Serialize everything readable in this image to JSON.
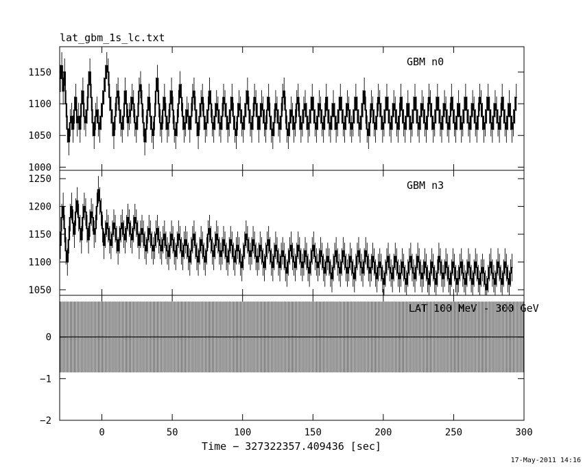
{
  "title": "lat_gbm_1s_lc.txt",
  "timestamp": "17-May-2011 14:16",
  "chart_data": [
    {
      "type": "line",
      "panel_label": "GBM n0",
      "xlim": [
        -30,
        300
      ],
      "ylim": [
        995,
        1190
      ],
      "yticks": [
        "1000",
        "1050",
        "1100",
        "1150"
      ],
      "series": [
        {
          "x_start": -30,
          "x_step": 1,
          "values": [
            1140,
            1160,
            1120,
            1150,
            1100,
            1060,
            1040,
            1070,
            1080,
            1060,
            1090,
            1110,
            1070,
            1080,
            1060,
            1100,
            1120,
            1080,
            1070,
            1090,
            1130,
            1150,
            1110,
            1070,
            1050,
            1080,
            1090,
            1070,
            1060,
            1080,
            1100,
            1120,
            1140,
            1160,
            1150,
            1110,
            1090,
            1070,
            1050,
            1080,
            1110,
            1120,
            1090,
            1070,
            1060,
            1080,
            1120,
            1100,
            1070,
            1080,
            1090,
            1110,
            1100,
            1070,
            1060,
            1080,
            1120,
            1130,
            1100,
            1070,
            1040,
            1060,
            1090,
            1110,
            1080,
            1060,
            1050,
            1080,
            1120,
            1140,
            1100,
            1070,
            1060,
            1090,
            1110,
            1080,
            1060,
            1070,
            1100,
            1120,
            1090,
            1060,
            1050,
            1070,
            1100,
            1130,
            1110,
            1080,
            1060,
            1070,
            1090,
            1080,
            1060,
            1080,
            1110,
            1120,
            1090,
            1070,
            1050,
            1080,
            1100,
            1110,
            1080,
            1060,
            1070,
            1090,
            1120,
            1100,
            1070,
            1060,
            1080,
            1100,
            1090,
            1070,
            1060,
            1080,
            1110,
            1100,
            1080,
            1060,
            1070,
            1090,
            1110,
            1080,
            1060,
            1050,
            1080,
            1100,
            1090,
            1070,
            1060,
            1080,
            1100,
            1120,
            1090,
            1070,
            1060,
            1080,
            1110,
            1100,
            1080,
            1060,
            1080,
            1100,
            1090,
            1070,
            1060,
            1090,
            1110,
            1080,
            1060,
            1050,
            1070,
            1100,
            1090,
            1070,
            1060,
            1080,
            1110,
            1120,
            1090,
            1060,
            1050,
            1070,
            1090,
            1080,
            1060,
            1070,
            1100,
            1110,
            1080,
            1060,
            1070,
            1090,
            1100,
            1080,
            1060,
            1070,
            1090,
            1110,
            1090,
            1070,
            1060,
            1080,
            1100,
            1090,
            1070,
            1060,
            1080,
            1110,
            1090,
            1070,
            1060,
            1080,
            1100,
            1080,
            1060,
            1070,
            1090,
            1110,
            1090,
            1070,
            1060,
            1080,
            1100,
            1090,
            1070,
            1060,
            1070,
            1090,
            1110,
            1090,
            1070,
            1060,
            1080,
            1100,
            1120,
            1090,
            1060,
            1050,
            1070,
            1100,
            1090,
            1070,
            1060,
            1080,
            1110,
            1100,
            1080,
            1060,
            1070,
            1090,
            1110,
            1090,
            1070,
            1060,
            1080,
            1100,
            1090,
            1070,
            1060,
            1080,
            1110,
            1090,
            1070,
            1060,
            1080,
            1100,
            1080,
            1060,
            1070,
            1090,
            1110,
            1090,
            1070,
            1060,
            1080,
            1100,
            1090,
            1070,
            1060,
            1080,
            1110,
            1100,
            1080,
            1060,
            1070,
            1090,
            1110,
            1090,
            1070,
            1060,
            1080,
            1100,
            1090,
            1070,
            1060,
            1080,
            1110,
            1090,
            1070,
            1060,
            1080,
            1100,
            1080,
            1060,
            1070,
            1090,
            1110,
            1090,
            1070,
            1060,
            1080,
            1100,
            1090,
            1070,
            1060,
            1080,
            1110,
            1100,
            1080,
            1060,
            1070,
            1090,
            1110,
            1090,
            1070,
            1060,
            1080,
            1100,
            1090,
            1070,
            1060,
            1080,
            1110,
            1090,
            1070,
            1060,
            1080,
            1100,
            1080,
            1060,
            1070,
            1090,
            1110
          ]
        }
      ]
    },
    {
      "type": "line",
      "panel_label": "GBM n3",
      "xlim": [
        -30,
        300
      ],
      "ylim": [
        1040,
        1265
      ],
      "yticks": [
        "1050",
        "1100",
        "1150",
        "1200",
        "1250"
      ],
      "series": [
        {
          "x_start": -30,
          "x_step": 1,
          "values": [
            1130,
            1180,
            1200,
            1160,
            1120,
            1100,
            1140,
            1180,
            1200,
            1170,
            1150,
            1190,
            1210,
            1180,
            1160,
            1140,
            1180,
            1200,
            1190,
            1160,
            1140,
            1170,
            1190,
            1180,
            1150,
            1160,
            1200,
            1230,
            1210,
            1190,
            1160,
            1130,
            1150,
            1170,
            1160,
            1140,
            1130,
            1150,
            1170,
            1160,
            1140,
            1120,
            1140,
            1160,
            1170,
            1150,
            1140,
            1160,
            1180,
            1170,
            1150,
            1140,
            1160,
            1180,
            1170,
            1150,
            1130,
            1150,
            1160,
            1150,
            1130,
            1120,
            1140,
            1160,
            1150,
            1130,
            1120,
            1130,
            1150,
            1160,
            1140,
            1130,
            1120,
            1140,
            1150,
            1130,
            1120,
            1110,
            1130,
            1150,
            1140,
            1120,
            1110,
            1130,
            1150,
            1140,
            1120,
            1110,
            1130,
            1140,
            1130,
            1110,
            1100,
            1120,
            1140,
            1150,
            1130,
            1110,
            1100,
            1120,
            1140,
            1130,
            1110,
            1100,
            1120,
            1150,
            1160,
            1140,
            1120,
            1110,
            1130,
            1150,
            1140,
            1120,
            1110,
            1120,
            1140,
            1130,
            1110,
            1100,
            1120,
            1140,
            1130,
            1110,
            1100,
            1120,
            1130,
            1120,
            1100,
            1090,
            1110,
            1130,
            1150,
            1140,
            1120,
            1110,
            1120,
            1140,
            1130,
            1110,
            1100,
            1110,
            1130,
            1120,
            1100,
            1090,
            1110,
            1130,
            1140,
            1120,
            1100,
            1090,
            1110,
            1130,
            1120,
            1100,
            1090,
            1110,
            1120,
            1110,
            1090,
            1080,
            1100,
            1120,
            1130,
            1110,
            1100,
            1090,
            1110,
            1130,
            1120,
            1100,
            1090,
            1100,
            1120,
            1110,
            1090,
            1080,
            1100,
            1120,
            1130,
            1110,
            1100,
            1090,
            1100,
            1120,
            1110,
            1090,
            1080,
            1100,
            1110,
            1100,
            1080,
            1070,
            1090,
            1110,
            1120,
            1100,
            1090,
            1080,
            1100,
            1120,
            1110,
            1090,
            1080,
            1090,
            1110,
            1100,
            1080,
            1070,
            1090,
            1110,
            1120,
            1100,
            1090,
            1080,
            1100,
            1120,
            1110,
            1090,
            1080,
            1090,
            1110,
            1100,
            1080,
            1070,
            1090,
            1100,
            1090,
            1070,
            1060,
            1080,
            1100,
            1110,
            1090,
            1080,
            1070,
            1090,
            1110,
            1100,
            1080,
            1070,
            1080,
            1100,
            1090,
            1070,
            1060,
            1080,
            1100,
            1110,
            1090,
            1080,
            1070,
            1090,
            1110,
            1100,
            1080,
            1070,
            1080,
            1100,
            1090,
            1070,
            1060,
            1080,
            1100,
            1090,
            1070,
            1060,
            1080,
            1110,
            1100,
            1080,
            1070,
            1080,
            1100,
            1090,
            1070,
            1060,
            1080,
            1100,
            1090,
            1070,
            1060,
            1070,
            1090,
            1100,
            1080,
            1070,
            1060,
            1080,
            1100,
            1090,
            1070,
            1060,
            1080,
            1100,
            1090,
            1070,
            1060,
            1080,
            1090,
            1080,
            1060,
            1050,
            1070,
            1090,
            1100,
            1080,
            1070,
            1060,
            1080,
            1100,
            1090,
            1070,
            1060,
            1080,
            1100,
            1090,
            1070,
            1060,
            1080,
            1090
          ]
        }
      ]
    },
    {
      "type": "bar",
      "panel_label": "LAT 100 MeV - 300 GeV",
      "xlim": [
        -30,
        300
      ],
      "ylim": [
        -2,
        1
      ],
      "yticks": [
        "−2",
        "−1",
        "0"
      ],
      "x_start": -30,
      "x_step": 1,
      "value": 0,
      "error": 0.85
    }
  ],
  "x_axis": {
    "label": "Time − 327322357.409436 [sec]",
    "ticks": [
      "0",
      "50",
      "100",
      "150",
      "200",
      "250",
      "300"
    ],
    "tick_values": [
      0,
      50,
      100,
      150,
      200,
      250,
      300
    ]
  }
}
